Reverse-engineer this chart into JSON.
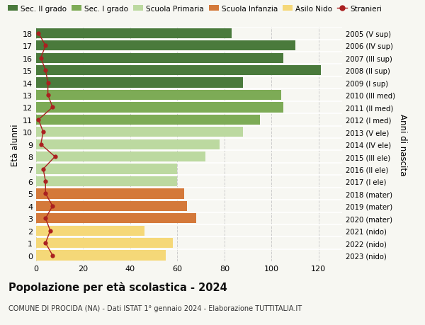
{
  "ages": [
    18,
    17,
    16,
    15,
    14,
    13,
    12,
    11,
    10,
    9,
    8,
    7,
    6,
    5,
    4,
    3,
    2,
    1,
    0
  ],
  "bar_values": [
    83,
    110,
    105,
    121,
    88,
    104,
    105,
    95,
    88,
    78,
    72,
    60,
    60,
    63,
    64,
    68,
    46,
    58,
    55
  ],
  "stranieri_values": [
    1,
    4,
    2,
    4,
    5,
    5,
    7,
    1,
    3,
    2,
    8,
    3,
    4,
    4,
    7,
    4,
    6,
    4,
    7
  ],
  "right_labels": [
    "2005 (V sup)",
    "2006 (IV sup)",
    "2007 (III sup)",
    "2008 (II sup)",
    "2009 (I sup)",
    "2010 (III med)",
    "2011 (II med)",
    "2012 (I med)",
    "2013 (V ele)",
    "2014 (IV ele)",
    "2015 (III ele)",
    "2016 (II ele)",
    "2017 (I ele)",
    "2018 (mater)",
    "2019 (mater)",
    "2020 (mater)",
    "2021 (nido)",
    "2022 (nido)",
    "2023 (nido)"
  ],
  "bar_colors": [
    "#4a7a3c",
    "#4a7a3c",
    "#4a7a3c",
    "#4a7a3c",
    "#4a7a3c",
    "#7dab56",
    "#7dab56",
    "#7dab56",
    "#bcd9a0",
    "#bcd9a0",
    "#bcd9a0",
    "#bcd9a0",
    "#bcd9a0",
    "#d4793a",
    "#d4793a",
    "#d4793a",
    "#f5d878",
    "#f5d878",
    "#f5d878"
  ],
  "legend_labels": [
    "Sec. II grado",
    "Sec. I grado",
    "Scuola Primaria",
    "Scuola Infanzia",
    "Asilo Nido",
    "Stranieri"
  ],
  "legend_colors": [
    "#4a7a3c",
    "#7dab56",
    "#bcd9a0",
    "#d4793a",
    "#f5d878",
    "#aa2020"
  ],
  "title": "Popolazione per età scolastica - 2024",
  "subtitle": "COMUNE DI PROCIDA (NA) - Dati ISTAT 1° gennaio 2024 - Elaborazione TUTTITALIA.IT",
  "ylabel": "Età alunni",
  "right_ylabel": "Anni di nascita",
  "xlim": [
    0,
    130
  ],
  "xticks": [
    0,
    20,
    40,
    60,
    80,
    100,
    120
  ],
  "stranieri_color": "#aa2020",
  "background_color": "#f7f7f2",
  "plot_bg_color": "#f7f7f2",
  "grid_color": "#cccccc",
  "bar_height": 0.82
}
